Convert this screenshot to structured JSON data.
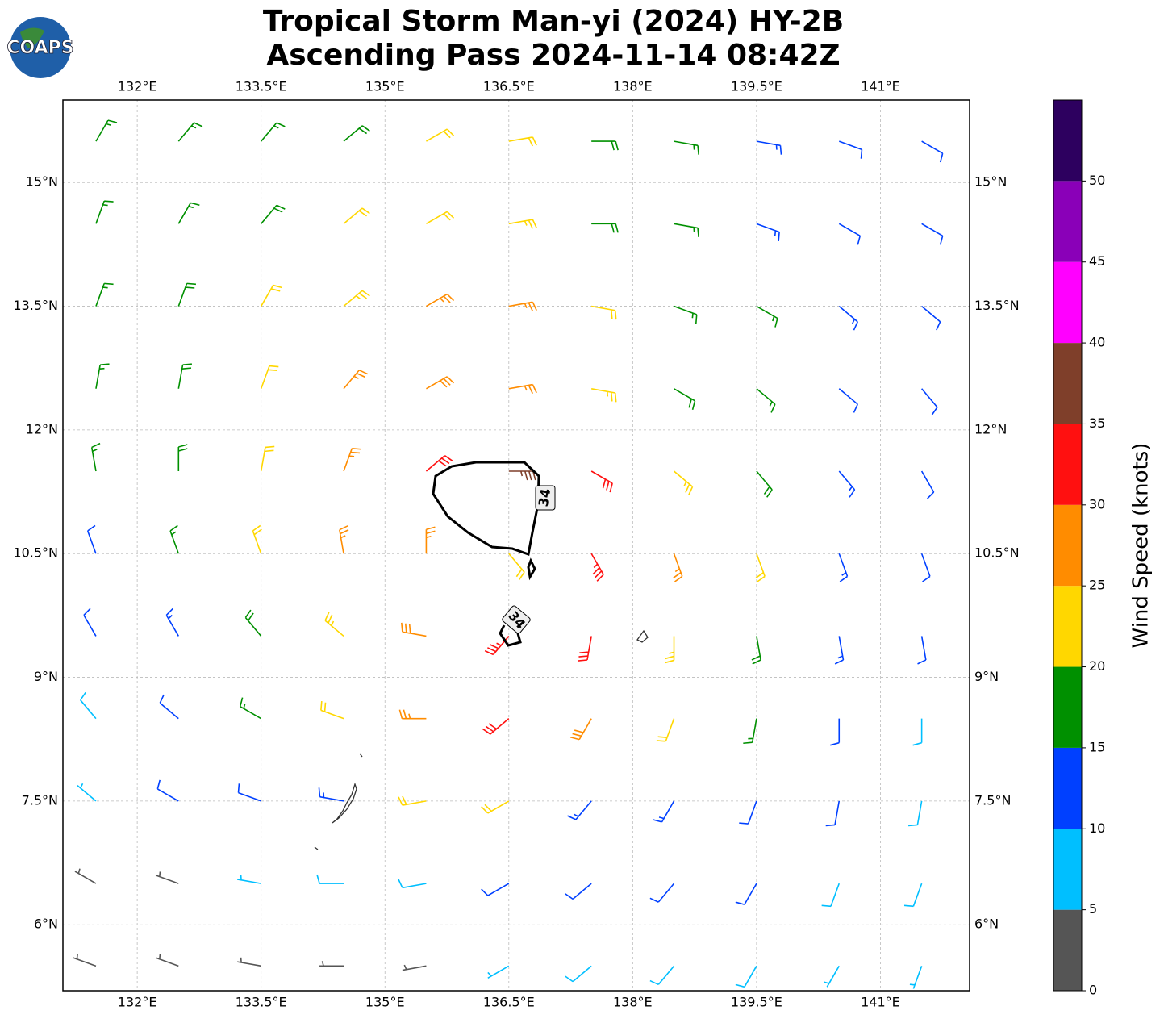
{
  "chart_data": {
    "type": "barb",
    "title": "Tropical Storm Man-yi (2024) HY-2B",
    "subtitle": "Ascending Pass 2024-11-14 08:42Z",
    "logo": "COAPS",
    "xlim": [
      131.1,
      142.08
    ],
    "ylim": [
      5.2,
      16.0
    ],
    "xticks": [
      {
        "value": 132,
        "label": "132°E"
      },
      {
        "value": 133.5,
        "label": "133.5°E"
      },
      {
        "value": 135,
        "label": "135°E"
      },
      {
        "value": 136.5,
        "label": "136.5°E"
      },
      {
        "value": 138,
        "label": "138°E"
      },
      {
        "value": 139.5,
        "label": "139.5°E"
      },
      {
        "value": 141,
        "label": "141°E"
      }
    ],
    "yticks": [
      {
        "value": 6,
        "label": "6°N"
      },
      {
        "value": 7.5,
        "label": "7.5°N"
      },
      {
        "value": 9,
        "label": "9°N"
      },
      {
        "value": 10.5,
        "label": "10.5°N"
      },
      {
        "value": 12,
        "label": "12°N"
      },
      {
        "value": 13.5,
        "label": "13.5°N"
      },
      {
        "value": 15,
        "label": "15°N"
      }
    ],
    "grid": true,
    "wind": {
      "lon": [
        131.5,
        132.5,
        133.5,
        134.5,
        135.5,
        136.5,
        137.5,
        138.5,
        139.5,
        140.5,
        141.5
      ],
      "lat": [
        15.5,
        14.5,
        13.5,
        12.5,
        11.5,
        10.5,
        9.5,
        8.5,
        7.5,
        6.5,
        5.5
      ],
      "speed": [
        [
          17,
          17,
          17,
          18,
          21,
          22,
          18,
          17,
          14,
          12,
          12
        ],
        [
          17,
          17,
          18,
          21,
          22,
          23,
          19,
          17,
          14,
          12,
          11
        ],
        [
          16,
          18,
          22,
          23,
          26,
          26,
          22,
          17,
          15,
          13,
          11
        ],
        [
          16,
          19,
          22,
          25,
          28,
          27,
          23,
          19,
          15,
          12,
          11
        ],
        [
          15,
          18,
          22,
          26,
          31,
          37,
          31,
          23,
          19,
          13,
          11
        ],
        [
          12,
          16,
          21,
          26,
          25,
          22,
          34,
          26,
          20,
          14,
          11
        ],
        [
          11,
          14,
          18,
          23,
          28,
          33,
          30,
          24,
          18,
          13,
          10
        ],
        [
          8,
          12,
          15,
          20,
          25,
          31,
          28,
          22,
          15,
          12,
          9
        ],
        [
          7,
          10,
          12,
          14,
          20,
          21,
          14,
          13,
          12,
          10,
          9
        ],
        [
          3,
          4,
          7,
          8,
          9,
          10,
          11,
          11,
          10,
          9,
          8
        ],
        [
          3,
          3,
          3,
          4,
          4,
          7,
          8,
          8,
          8,
          7,
          7
        ]
      ],
      "direction": [
        [
          30,
          40,
          40,
          50,
          60,
          80,
          90,
          100,
          100,
          110,
          120
        ],
        [
          20,
          30,
          40,
          50,
          60,
          80,
          90,
          100,
          110,
          120,
          120
        ],
        [
          20,
          20,
          30,
          50,
          60,
          80,
          100,
          110,
          120,
          130,
          130
        ],
        [
          10,
          10,
          20,
          40,
          60,
          80,
          100,
          120,
          130,
          130,
          140
        ],
        [
          350,
          0,
          10,
          20,
          50,
          90,
          120,
          130,
          140,
          140,
          150
        ],
        [
          340,
          340,
          340,
          350,
          0,
          140,
          150,
          160,
          160,
          160,
          160
        ],
        [
          330,
          330,
          320,
          310,
          280,
          220,
          190,
          180,
          170,
          170,
          170
        ],
        [
          320,
          310,
          300,
          290,
          270,
          230,
          210,
          200,
          190,
          180,
          180
        ],
        [
          310,
          300,
          290,
          280,
          260,
          240,
          220,
          210,
          200,
          190,
          190
        ],
        [
          300,
          290,
          280,
          270,
          260,
          240,
          230,
          220,
          210,
          200,
          200
        ],
        [
          290,
          290,
          280,
          270,
          260,
          240,
          230,
          220,
          210,
          210,
          200
        ]
      ]
    },
    "contour": {
      "level": 34
    },
    "colorbar": {
      "label": "Wind Speed (knots)",
      "lim": [
        0,
        55
      ],
      "ticks": [
        0,
        5,
        10,
        15,
        20,
        25,
        30,
        35,
        40,
        45,
        50
      ],
      "bounds": [
        0,
        5,
        10,
        15,
        20,
        25,
        30,
        35,
        40,
        45,
        50,
        55
      ],
      "colors": [
        "#555555",
        "#00bfff",
        "#0040ff",
        "#009000",
        "#ffd700",
        "#ff8c00",
        "#ff1010",
        "#7f3f2a",
        "#ff00ff",
        "#8a00b8",
        "#2d005f"
      ]
    }
  }
}
